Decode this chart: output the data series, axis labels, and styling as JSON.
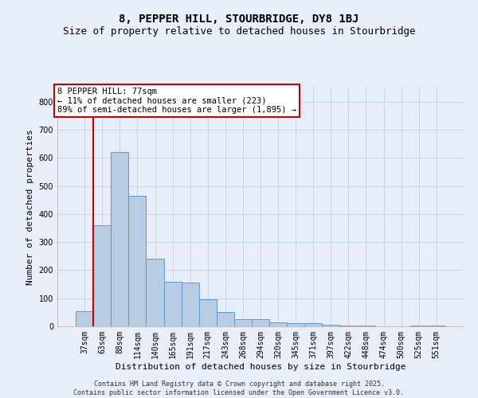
{
  "title": "8, PEPPER HILL, STOURBRIDGE, DY8 1BJ",
  "subtitle": "Size of property relative to detached houses in Stourbridge",
  "xlabel": "Distribution of detached houses by size in Stourbridge",
  "ylabel": "Number of detached properties",
  "categories": [
    "37sqm",
    "63sqm",
    "88sqm",
    "114sqm",
    "140sqm",
    "165sqm",
    "191sqm",
    "217sqm",
    "243sqm",
    "268sqm",
    "294sqm",
    "320sqm",
    "345sqm",
    "371sqm",
    "397sqm",
    "422sqm",
    "448sqm",
    "474sqm",
    "500sqm",
    "525sqm",
    "551sqm"
  ],
  "values": [
    55,
    360,
    620,
    465,
    240,
    160,
    155,
    97,
    50,
    25,
    25,
    15,
    10,
    10,
    5,
    3,
    2,
    0,
    0,
    2,
    2
  ],
  "bar_color": "#b8cce4",
  "bar_edge_color": "#5b9bd5",
  "grid_color": "#c8d4e8",
  "bg_color": "#e8eef8",
  "vline_x_index": 1,
  "vline_color": "#cc0000",
  "annotation_text": "8 PEPPER HILL: 77sqm\n← 11% of detached houses are smaller (223)\n89% of semi-detached houses are larger (1,895) →",
  "annotation_box_color": "#ffffff",
  "annotation_edge_color": "#cc0000",
  "footer": "Contains HM Land Registry data © Crown copyright and database right 2025.\nContains public sector information licensed under the Open Government Licence v3.0.",
  "title_fontsize": 10,
  "subtitle_fontsize": 9,
  "ylabel_fontsize": 8,
  "xlabel_fontsize": 8,
  "tick_fontsize": 7,
  "ann_fontsize": 7.5,
  "footer_fontsize": 6,
  "ylim": [
    0,
    850
  ],
  "yticks": [
    0,
    100,
    200,
    300,
    400,
    500,
    600,
    700,
    800
  ]
}
